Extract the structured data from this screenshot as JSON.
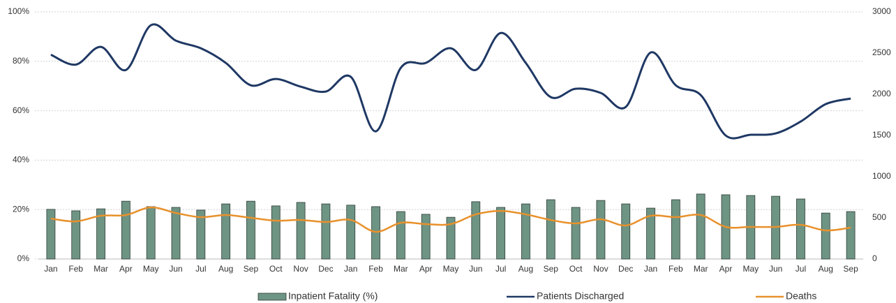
{
  "chart_data": {
    "type": "bar-line",
    "categories": [
      "Jan",
      "Feb",
      "Mar",
      "Apr",
      "May",
      "Jun",
      "Jul",
      "Aug",
      "Sep",
      "Oct",
      "Nov",
      "Dec",
      "Jan",
      "Feb",
      "Mar",
      "Apr",
      "May",
      "Jun",
      "Jul",
      "Aug",
      "Sep",
      "Oct",
      "Nov",
      "Dec",
      "Jan",
      "Feb",
      "Mar",
      "Apr",
      "May",
      "Jun",
      "Jul",
      "Aug",
      "Sep"
    ],
    "series": [
      {
        "name": "Inpatient Fatality (%)",
        "kind": "bar",
        "color": "#6e9484",
        "axis": "y",
        "values": [
          20.1,
          19.5,
          20.3,
          23.4,
          21.2,
          20.9,
          19.8,
          22.3,
          23.4,
          21.5,
          22.9,
          22.3,
          21.8,
          21.2,
          19.2,
          18.1,
          16.9,
          23.2,
          20.9,
          22.3,
          24.0,
          20.9,
          23.7,
          22.3,
          20.6,
          24.0,
          26.3,
          26.0,
          25.7,
          25.4,
          24.3,
          18.6,
          19.2
        ]
      },
      {
        "name": "Patients Discharged",
        "kind": "line",
        "color": "#1f3864",
        "axis": "y2",
        "values": [
          2480,
          2360,
          2575,
          2295,
          2838,
          2651,
          2558,
          2380,
          2109,
          2185,
          2092,
          2033,
          2211,
          1550,
          2321,
          2380,
          2558,
          2295,
          2744,
          2380,
          1965,
          2067,
          2016,
          1846,
          2507,
          2109,
          1990,
          1499,
          1508,
          1525,
          1669,
          1880,
          1948
        ]
      },
      {
        "name": "Deaths",
        "kind": "line",
        "color": "#e8912b",
        "axis": "y2",
        "values": [
          490,
          457,
          525,
          534,
          627,
          559,
          508,
          534,
          500,
          466,
          474,
          449,
          474,
          330,
          440,
          424,
          424,
          542,
          584,
          542,
          474,
          432,
          483,
          407,
          525,
          508,
          534,
          390,
          390,
          390,
          415,
          347,
          381
        ]
      }
    ],
    "ylim": [
      0,
      100
    ],
    "yticks": [
      {
        "value": 0,
        "label": "0%"
      },
      {
        "value": 20,
        "label": "20%"
      },
      {
        "value": 40,
        "label": "40%"
      },
      {
        "value": 60,
        "label": "60%"
      },
      {
        "value": 80,
        "label": "80%"
      },
      {
        "value": 100,
        "label": "100%"
      }
    ],
    "y2lim": [
      0,
      3000
    ],
    "y2ticks": [
      0,
      500,
      1000,
      1500,
      2000,
      2500,
      3000
    ],
    "grid": true,
    "legend": "bottom"
  }
}
